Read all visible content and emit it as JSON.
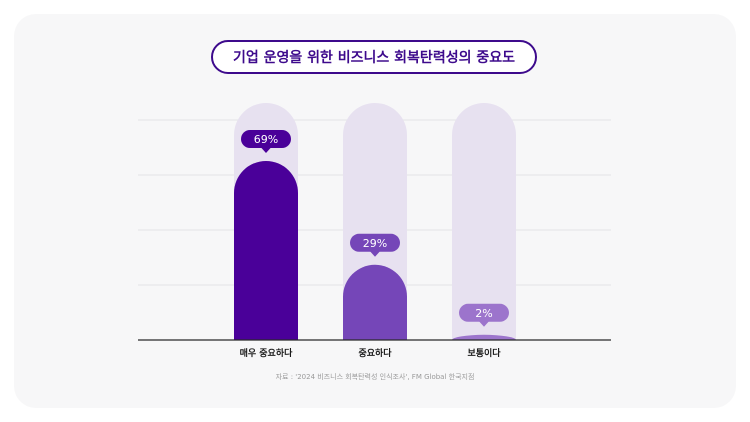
{
  "chart_data": {
    "type": "bar",
    "title": "기업 운영을 위한 비즈니스 회복탄력성의 중요도",
    "categories": [
      "매우 중요하다",
      "중요하다",
      "보통이다"
    ],
    "values": [
      69,
      29,
      2
    ],
    "value_labels": [
      "69%",
      "29%",
      "2%"
    ],
    "ylim": [
      0,
      100
    ],
    "xlabel": "",
    "ylabel": "",
    "grid": true,
    "colors": [
      "#4a0099",
      "#7546b8",
      "#9c74cc"
    ],
    "track_color": "#e7e1f0"
  },
  "source": "자료 : '2024 비즈니스 회복탄력성 인식조사', FM Global 한국지점"
}
